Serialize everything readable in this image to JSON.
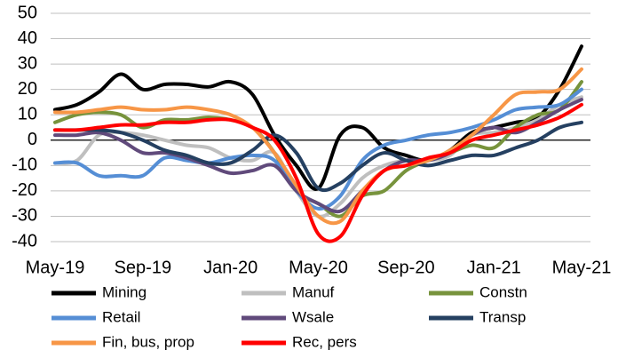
{
  "chart_data": {
    "type": "line",
    "categories": [
      "May-19",
      null,
      null,
      null,
      "Sep-19",
      null,
      null,
      null,
      "Jan-20",
      null,
      null,
      null,
      "May-20",
      null,
      null,
      null,
      "Sep-20",
      null,
      null,
      null,
      "Jan-21",
      null,
      null,
      null,
      "May-21"
    ],
    "ylim": [
      -40,
      50
    ],
    "yticks": [
      -40,
      -30,
      -20,
      -10,
      0,
      10,
      20,
      30,
      40,
      50
    ],
    "grid": true,
    "legend": "bottom",
    "series": [
      {
        "name": "Mining",
        "color": "#000000",
        "values": [
          12,
          14,
          19,
          26,
          20,
          22,
          22,
          21,
          23,
          18,
          2,
          -10,
          -19,
          2,
          5,
          -3,
          -6,
          -8,
          -4,
          3,
          5,
          7,
          9,
          20,
          37
        ]
      },
      {
        "name": "Manuf",
        "color": "#bfbfbf",
        "values": [
          -9,
          -8,
          2,
          3,
          2,
          0,
          -2,
          -3,
          -7,
          -8,
          -5,
          -20,
          -30,
          -25,
          -15,
          -10,
          -8,
          -8,
          -6,
          2,
          3,
          5,
          8,
          14,
          17
        ]
      },
      {
        "name": "Constn",
        "color": "#77933c",
        "values": [
          7,
          10,
          11,
          10,
          5,
          8,
          8,
          9,
          8,
          5,
          -5,
          -20,
          -25,
          -30,
          -22,
          -20,
          -12,
          -8,
          -5,
          -2,
          -3,
          5,
          10,
          12,
          23
        ]
      },
      {
        "name": "Retail",
        "color": "#558ed5",
        "values": [
          -9,
          -9,
          -14,
          -14,
          -14,
          -7,
          -8,
          -9,
          -7,
          -6,
          -8,
          -20,
          -27,
          -22,
          -8,
          -2,
          0,
          2,
          3,
          5,
          8,
          12,
          13,
          14,
          20
        ]
      },
      {
        "name": "Wsale",
        "color": "#604a7b",
        "values": [
          2,
          2,
          3,
          0,
          -5,
          -5,
          -7,
          -10,
          -13,
          -12,
          -10,
          -20,
          -25,
          -28,
          -20,
          -12,
          -8,
          -8,
          -5,
          2,
          5,
          3,
          7,
          12,
          16
        ]
      },
      {
        "name": "Transp",
        "color": "#254061",
        "values": [
          4,
          4,
          4,
          3,
          0,
          -4,
          -6,
          -9,
          -9,
          -4,
          2,
          -5,
          -19,
          -17,
          -10,
          -5,
          -8,
          -10,
          -8,
          -6,
          -6,
          -3,
          0,
          5,
          7
        ]
      },
      {
        "name": "Fin, bus, prop",
        "color": "#f79646",
        "values": [
          11,
          11,
          12,
          13,
          12,
          12,
          13,
          12,
          10,
          5,
          -5,
          -18,
          -30,
          -32,
          -20,
          -12,
          -10,
          -8,
          -4,
          2,
          10,
          18,
          19,
          20,
          28
        ]
      },
      {
        "name": "Rec, pers",
        "color": "#ff0000",
        "values": [
          4,
          4,
          5,
          6,
          6,
          7,
          7,
          8,
          8,
          5,
          0,
          -15,
          -37,
          -38,
          -22,
          -12,
          -10,
          -7,
          -5,
          0,
          2,
          4,
          6,
          9,
          14
        ]
      }
    ]
  }
}
